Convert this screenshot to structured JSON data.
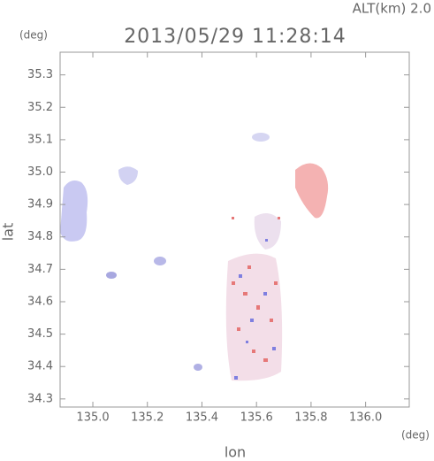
{
  "chart_data": {
    "type": "map",
    "title": "2013/05/29 11:28:14",
    "subtitle": "ALT(km) 2.0",
    "xlabel": "lon",
    "ylabel": "lat",
    "x_unit": "(deg)",
    "y_unit": "(deg)",
    "xlim": [
      134.88,
      136.16
    ],
    "ylim": [
      34.275,
      35.37
    ],
    "xticks": [
      {
        "value": 135,
        "label": "135.0"
      },
      135.2,
      135.4,
      135.6,
      135.8,
      {
        "value": 136,
        "label": "136.0"
      }
    ],
    "yticks": [
      34.3,
      34.4,
      34.5,
      34.6,
      34.7,
      34.8,
      34.9,
      {
        "value": 35,
        "label": "35.0"
      },
      35.1,
      35.2,
      35.3
    ]
  }
}
